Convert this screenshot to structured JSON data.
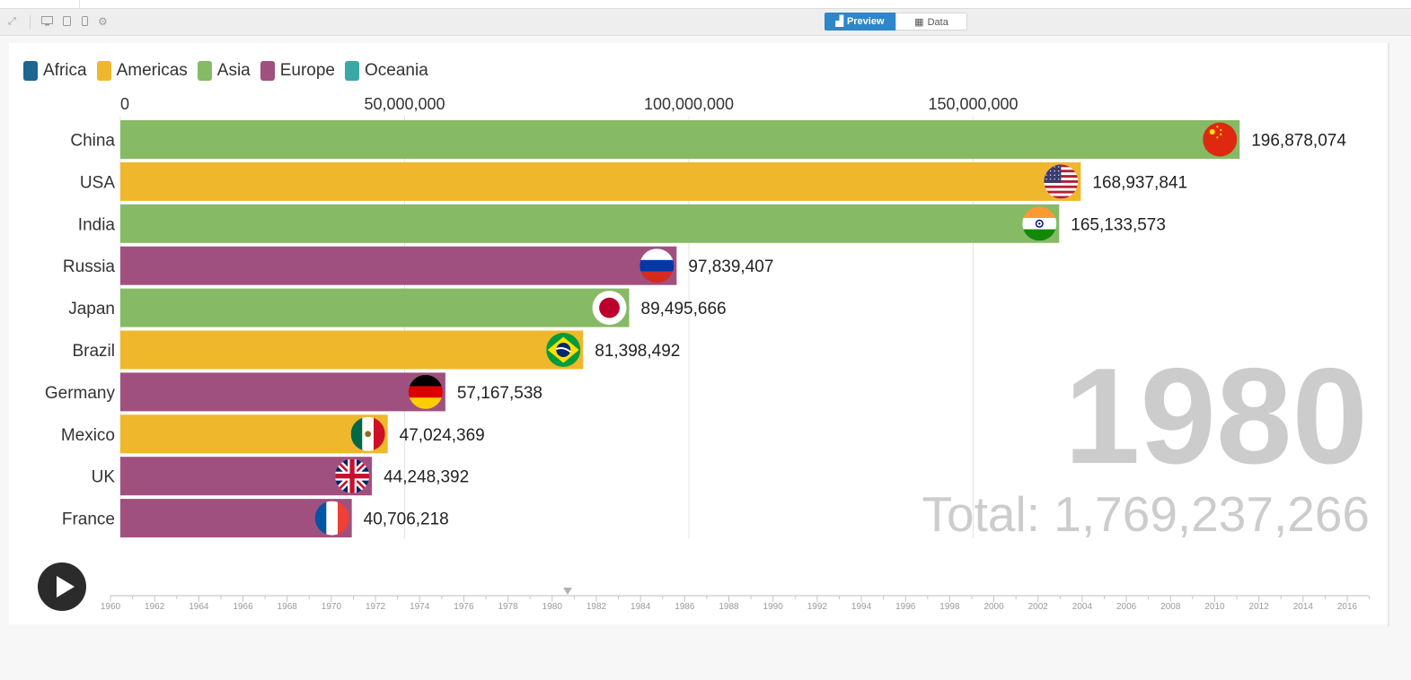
{
  "toolbar": {
    "expand_icon": "expand-icon",
    "device_icons": [
      "desktop-icon",
      "tablet-icon",
      "phone-icon",
      "gear-icon"
    ],
    "preview_label": "Preview",
    "data_label": "Data",
    "active_color": "#2d87c8"
  },
  "legend": [
    {
      "label": "Africa",
      "color": "#1e6591"
    },
    {
      "label": "Americas",
      "color": "#efb72c"
    },
    {
      "label": "Asia",
      "color": "#86ba64"
    },
    {
      "label": "Europe",
      "color": "#a0507f"
    },
    {
      "label": "Oceania",
      "color": "#3aa8a4"
    }
  ],
  "chart_data": {
    "type": "bar",
    "orientation": "horizontal",
    "categories": [
      "China",
      "USA",
      "India",
      "Russia",
      "Japan",
      "Brazil",
      "Germany",
      "Mexico",
      "UK",
      "France"
    ],
    "values": [
      196878074,
      168937841,
      165133573,
      97839407,
      89495666,
      81398492,
      57167538,
      47024369,
      44248392,
      40706218
    ],
    "value_labels": [
      "196,878,074",
      "168,937,841",
      "165,133,573",
      "97,839,407",
      "89,495,666",
      "81,398,492",
      "57,167,538",
      "47,024,369",
      "44,248,392",
      "40,706,218"
    ],
    "regions": [
      "Asia",
      "Americas",
      "Asia",
      "Europe",
      "Asia",
      "Americas",
      "Europe",
      "Americas",
      "Europe",
      "Europe"
    ],
    "flag_icons": [
      "china-flag-icon",
      "usa-flag-icon",
      "india-flag-icon",
      "russia-flag-icon",
      "japan-flag-icon",
      "brazil-flag-icon",
      "germany-flag-icon",
      "mexico-flag-icon",
      "uk-flag-icon",
      "france-flag-icon"
    ],
    "xlim": [
      0,
      220000000
    ],
    "x_ticks": [
      0,
      50000000,
      100000000,
      150000000
    ],
    "x_tick_labels": [
      "0",
      "50,000,000",
      "100,000,000",
      "150,000,000"
    ],
    "grid": true,
    "legend_position": "top-left",
    "year": "1980",
    "total_label": "Total: 1,769,237,266"
  },
  "timeline": {
    "start": 1960,
    "end": 2017,
    "current": 1980.7,
    "tick_labels": [
      "1960",
      "1962",
      "1964",
      "1966",
      "1968",
      "1970",
      "1972",
      "1974",
      "1976",
      "1978",
      "1980",
      "1982",
      "1984",
      "1986",
      "1988",
      "1990",
      "1992",
      "1994",
      "1996",
      "1998",
      "2000",
      "2002",
      "2004",
      "2006",
      "2008",
      "2010",
      "2012",
      "2014",
      "2016"
    ]
  },
  "play_icon": "play-icon"
}
